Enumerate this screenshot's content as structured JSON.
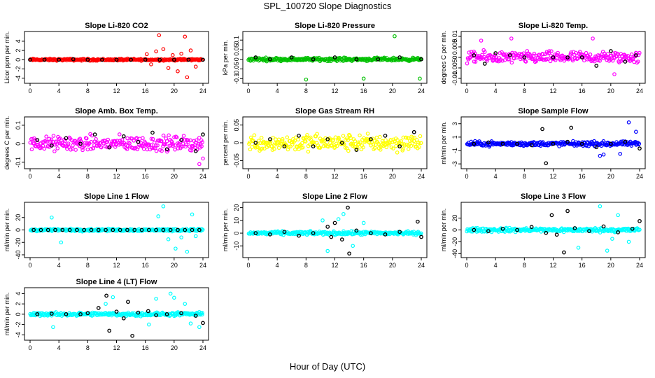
{
  "title": "SPL_100720  Slope Diagnostics",
  "x_axis_title": "Hour of Day (UTC)",
  "chart_data": [
    {
      "type": "scatter",
      "title": "Slope Li-820 CO2",
      "ylabel": "Licor ppm per min.",
      "color": "#ff0000",
      "ylim": [
        -4.5,
        5.5
      ],
      "yticks": [
        -4,
        -2,
        0,
        2,
        4
      ],
      "xticks": [
        0,
        4,
        8,
        12,
        16,
        20,
        24
      ],
      "xlim": [
        0,
        24
      ],
      "spread": 0.3,
      "extra": [
        [
          16.2,
          1.2
        ],
        [
          16.8,
          -1.0
        ],
        [
          17.5,
          1.8
        ],
        [
          17.9,
          5.3
        ],
        [
          18.5,
          2.3
        ],
        [
          19.2,
          -1.8
        ],
        [
          19.8,
          1.0
        ],
        [
          20.5,
          -2.5
        ],
        [
          21.0,
          1.3
        ],
        [
          21.5,
          5.0
        ],
        [
          21.8,
          -3.8
        ],
        [
          22.3,
          2.0
        ],
        [
          23.0,
          -1.5
        ]
      ],
      "black": [
        [
          0,
          0
        ],
        [
          2,
          0
        ],
        [
          4,
          0
        ],
        [
          6,
          0.1
        ],
        [
          8,
          0
        ],
        [
          10,
          0
        ],
        [
          12,
          0
        ],
        [
          14,
          0
        ],
        [
          16,
          0
        ],
        [
          18,
          0
        ],
        [
          20,
          0
        ],
        [
          22,
          0
        ],
        [
          24,
          0
        ]
      ]
    },
    {
      "type": "scatter",
      "title": "Slope Li-820 Pressure",
      "ylabel": "kPa per min.",
      "color": "#00c000",
      "ylim": [
        -0.11,
        0.13
      ],
      "yticks": [
        -0.1,
        -0.05,
        0.0,
        0.05,
        0.1
      ],
      "xticks": [
        0,
        4,
        8,
        12,
        16,
        20,
        24
      ],
      "xlim": [
        0,
        24
      ],
      "spread": 0.012,
      "extra": [
        [
          8.0,
          -0.105
        ],
        [
          16.0,
          -0.1
        ],
        [
          20.3,
          0.12
        ],
        [
          23.8,
          -0.1
        ]
      ],
      "black": [
        [
          1,
          0.01
        ],
        [
          3,
          0.0
        ],
        [
          6,
          0.01
        ],
        [
          9,
          0.0
        ],
        [
          12,
          0.01
        ],
        [
          15,
          0.0
        ],
        [
          18,
          0.0
        ],
        [
          21,
          0.01
        ],
        [
          24,
          0.0
        ]
      ]
    },
    {
      "type": "scatter",
      "title": "Slope Li-820 Temp.",
      "ylabel": "degrees C per min.",
      "color": "#ff00ff",
      "ylim": [
        -0.011,
        0.011
      ],
      "yticks": [
        -0.01,
        -0.005,
        0.0,
        0.005,
        0.01
      ],
      "xticks": [
        0,
        4,
        8,
        12,
        16,
        20,
        24
      ],
      "xlim": [
        0,
        24
      ],
      "spread": 0.004,
      "extra": [
        [
          2.0,
          0.008
        ],
        [
          6.2,
          0.009
        ],
        [
          17.5,
          0.009
        ],
        [
          20.5,
          -0.008
        ]
      ],
      "black": [
        [
          1,
          0.001
        ],
        [
          2.5,
          -0.003
        ],
        [
          4,
          0.002
        ],
        [
          6,
          0.001
        ],
        [
          8,
          0.0
        ],
        [
          12,
          0.0
        ],
        [
          14,
          0.0
        ],
        [
          16,
          0.0
        ],
        [
          18,
          -0.004
        ],
        [
          20,
          0.003
        ],
        [
          22,
          -0.002
        ],
        [
          23.5,
          0.001
        ]
      ]
    },
    {
      "type": "scatter",
      "title": "Slope Amb. Box Temp.",
      "ylabel": "degrees C per min.",
      "color": "#ff00ff",
      "ylim": [
        -0.12,
        0.13
      ],
      "yticks": [
        -0.1,
        0.0,
        0.1
      ],
      "xticks": [
        0,
        4,
        8,
        12,
        16,
        20,
        24
      ],
      "xlim": [
        0,
        24
      ],
      "spread": 0.06,
      "extra": [
        [
          23.5,
          -0.11
        ],
        [
          24,
          -0.08
        ]
      ],
      "black": [
        [
          1,
          0.02
        ],
        [
          3,
          -0.01
        ],
        [
          5,
          0.03
        ],
        [
          7,
          0.0
        ],
        [
          9,
          0.05
        ],
        [
          11,
          -0.02
        ],
        [
          13,
          0.04
        ],
        [
          15,
          0.01
        ],
        [
          17,
          0.06
        ],
        [
          19,
          -0.03
        ],
        [
          21,
          0.02
        ],
        [
          23,
          -0.04
        ],
        [
          24,
          0.05
        ]
      ]
    },
    {
      "type": "scatter",
      "title": "Slope Gas Stream RH",
      "ylabel": "percent per min.",
      "color": "#ffff00",
      "ylim": [
        -0.065,
        0.065
      ],
      "yticks": [
        -0.05,
        0.0,
        0.05
      ],
      "xticks": [
        0,
        4,
        8,
        12,
        16,
        20,
        24
      ],
      "xlim": [
        0,
        24
      ],
      "spread": 0.035,
      "extra": [],
      "black": [
        [
          1,
          0.0
        ],
        [
          3,
          0.01
        ],
        [
          5,
          -0.01
        ],
        [
          7,
          0.02
        ],
        [
          9,
          -0.01
        ],
        [
          11,
          0.01
        ],
        [
          13,
          0.0
        ],
        [
          15,
          -0.02
        ],
        [
          17,
          0.01
        ],
        [
          19,
          0.02
        ],
        [
          21,
          -0.01
        ],
        [
          23,
          0.03
        ]
      ]
    },
    {
      "type": "scatter",
      "title": "Slope Sample Flow",
      "ylabel": "ml/min per min.",
      "color": "#0000ff",
      "ylim": [
        -3.3,
        3.6
      ],
      "yticks": [
        -3,
        -1,
        1,
        3
      ],
      "xticks": [
        0,
        4,
        8,
        12,
        16,
        20,
        24
      ],
      "xlim": [
        0,
        24
      ],
      "spread": 0.5,
      "extra": [
        [
          18.5,
          -1.8
        ],
        [
          19.0,
          -1.6
        ],
        [
          21.3,
          -1.5
        ],
        [
          23.5,
          1.8
        ],
        [
          22.5,
          3.2
        ]
      ],
      "black": [
        [
          1,
          0
        ],
        [
          3,
          0.2
        ],
        [
          5,
          0
        ],
        [
          7,
          0
        ],
        [
          9,
          -0.2
        ],
        [
          10.5,
          2.2
        ],
        [
          11,
          -2.9
        ],
        [
          12,
          0
        ],
        [
          14,
          0.3
        ],
        [
          14.5,
          2.4
        ],
        [
          16,
          0
        ],
        [
          18,
          -0.5
        ],
        [
          20,
          0
        ],
        [
          22,
          0.3
        ],
        [
          24,
          -0.7
        ]
      ]
    },
    {
      "type": "scatter",
      "title": "Slope Line 1 Flow",
      "ylabel": "ml/min per min.",
      "color": "#00ffff",
      "ylim": [
        -40,
        40
      ],
      "yticks": [
        -40,
        -20,
        0,
        20
      ],
      "xticks": [
        0,
        4,
        8,
        12,
        16,
        20,
        24
      ],
      "xlim": [
        0,
        24
      ],
      "spread": 3,
      "extra": [
        [
          3.0,
          20
        ],
        [
          4.3,
          -20
        ],
        [
          17.8,
          22
        ],
        [
          18.5,
          38
        ],
        [
          19.2,
          -15
        ],
        [
          20.2,
          -30
        ],
        [
          21.0,
          -12
        ],
        [
          21.8,
          -35
        ],
        [
          22.5,
          25
        ],
        [
          23.0,
          -10
        ]
      ],
      "black": [
        [
          0.5,
          0
        ],
        [
          1.5,
          0
        ],
        [
          2.5,
          0
        ],
        [
          3.5,
          0
        ],
        [
          4.5,
          0
        ],
        [
          5.5,
          0
        ],
        [
          6.5,
          0
        ],
        [
          7.5,
          0
        ],
        [
          8.5,
          0
        ],
        [
          9.5,
          0
        ],
        [
          10.5,
          0
        ],
        [
          11.5,
          0
        ],
        [
          12.5,
          0
        ],
        [
          13.5,
          0
        ],
        [
          14.5,
          0
        ],
        [
          15.5,
          0
        ],
        [
          16.5,
          0
        ],
        [
          17.5,
          0
        ],
        [
          18.5,
          0
        ],
        [
          19.5,
          0
        ],
        [
          20.5,
          0
        ],
        [
          21.5,
          0
        ],
        [
          22.5,
          0
        ],
        [
          23.5,
          0
        ]
      ]
    },
    {
      "type": "scatter",
      "title": "Slope Line 2 Flow",
      "ylabel": "ml/min per min.",
      "color": "#00ffff",
      "ylim": [
        -17,
        22
      ],
      "yticks": [
        -10,
        0,
        10,
        20
      ],
      "xticks": [
        0,
        4,
        8,
        12,
        16,
        20,
        24
      ],
      "xlim": [
        0,
        24
      ],
      "spread": 2,
      "extra": [
        [
          10.3,
          10
        ],
        [
          11.0,
          -14
        ],
        [
          12.5,
          11
        ],
        [
          13.2,
          15
        ],
        [
          14.5,
          -10
        ],
        [
          16.0,
          8
        ]
      ],
      "black": [
        [
          1,
          0
        ],
        [
          3,
          -1
        ],
        [
          5,
          1
        ],
        [
          7,
          -2
        ],
        [
          9,
          0
        ],
        [
          11,
          5
        ],
        [
          11.5,
          -3
        ],
        [
          12,
          8
        ],
        [
          13,
          -5
        ],
        [
          13.8,
          20
        ],
        [
          14,
          -16
        ],
        [
          15,
          2
        ],
        [
          17,
          0
        ],
        [
          19,
          -1
        ],
        [
          21,
          1
        ],
        [
          23.5,
          9
        ],
        [
          24,
          -3
        ]
      ]
    },
    {
      "type": "scatter",
      "title": "Slope Line 3 Flow",
      "ylabel": "ml/min per min.",
      "color": "#00ffff",
      "ylim": [
        -42,
        42
      ],
      "yticks": [
        -40,
        -20,
        0,
        20
      ],
      "xticks": [
        0,
        4,
        8,
        12,
        16,
        20,
        24
      ],
      "xlim": [
        0,
        24
      ],
      "spread": 5,
      "extra": [
        [
          15.5,
          -30
        ],
        [
          18.5,
          40
        ],
        [
          19.5,
          -35
        ],
        [
          20.2,
          -15
        ],
        [
          21.0,
          25
        ],
        [
          22.5,
          -20
        ]
      ],
      "black": [
        [
          1,
          0
        ],
        [
          3,
          -2
        ],
        [
          5,
          2
        ],
        [
          7,
          0
        ],
        [
          9,
          5
        ],
        [
          11,
          -5
        ],
        [
          11.8,
          25
        ],
        [
          12.5,
          -8
        ],
        [
          13.5,
          -38
        ],
        [
          14,
          32
        ],
        [
          15,
          3
        ],
        [
          17,
          -2
        ],
        [
          19,
          6
        ],
        [
          21,
          -4
        ],
        [
          23,
          2
        ],
        [
          24,
          15
        ]
      ]
    },
    {
      "type": "scatter",
      "title": "Slope Line 4 (LT) Flow",
      "ylabel": "ml/min per min.",
      "color": "#00ffff",
      "ylim": [
        -4.5,
        4.6
      ],
      "yticks": [
        -4,
        -2,
        0,
        2,
        4
      ],
      "xticks": [
        0,
        4,
        8,
        12,
        16,
        20,
        24
      ],
      "xlim": [
        0,
        24
      ],
      "spread": 0.5,
      "extra": [
        [
          3.2,
          -2.5
        ],
        [
          10.5,
          2
        ],
        [
          11.5,
          3.3
        ],
        [
          16.5,
          -2.0
        ],
        [
          17.5,
          3.0
        ],
        [
          19.5,
          4.0
        ],
        [
          20.0,
          3.2
        ],
        [
          21.5,
          2.0
        ],
        [
          22.3,
          -1.8
        ],
        [
          23.5,
          -2.5
        ]
      ],
      "black": [
        [
          1,
          0
        ],
        [
          3,
          0.1
        ],
        [
          5,
          0
        ],
        [
          7,
          0
        ],
        [
          8,
          0.2
        ],
        [
          9.5,
          1.2
        ],
        [
          10.6,
          3.6
        ],
        [
          11,
          -3.2
        ],
        [
          12,
          0.5
        ],
        [
          13,
          -0.8
        ],
        [
          13.6,
          2.4
        ],
        [
          14.2,
          -4.2
        ],
        [
          15,
          0.3
        ],
        [
          16.4,
          0.6
        ],
        [
          17.5,
          -0.2
        ],
        [
          19,
          0
        ],
        [
          21,
          0.2
        ],
        [
          23,
          -0.3
        ],
        [
          24,
          -1.7
        ]
      ]
    }
  ]
}
